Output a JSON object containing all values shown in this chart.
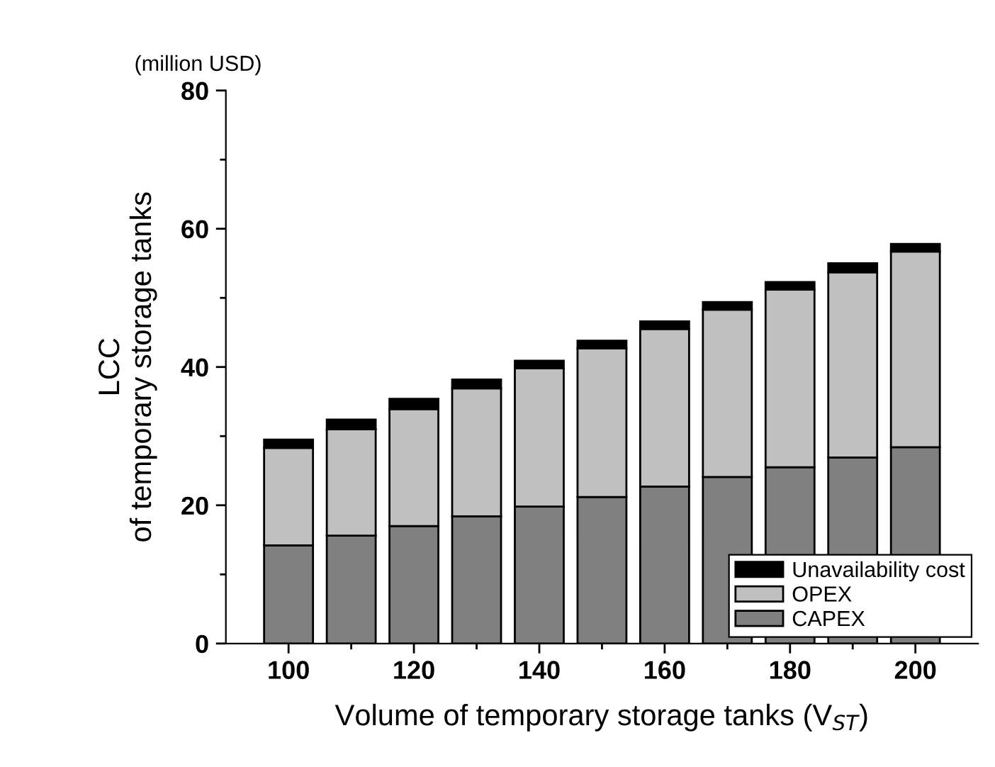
{
  "chart_data": {
    "type": "bar",
    "stacked": true,
    "xlabel": "Volume of temporary storage tanks (V$_{ST}$)",
    "ylabel": "LCC\nof temporary storage tanks",
    "annotations": [
      "(million USD)"
    ],
    "x": [
      100,
      110,
      120,
      130,
      140,
      150,
      160,
      170,
      180,
      190,
      200
    ],
    "series": [
      {
        "name": "CAPEX",
        "color": "#808080",
        "values": [
          14.2,
          15.6,
          17.0,
          18.4,
          19.8,
          21.2,
          22.7,
          24.1,
          25.5,
          26.9,
          28.4
        ]
      },
      {
        "name": "OPEX",
        "color": "#c0c0c0",
        "values": [
          14.1,
          15.4,
          16.9,
          18.5,
          20.0,
          21.5,
          22.8,
          24.2,
          25.7,
          26.8,
          28.3
        ]
      },
      {
        "name": "Unavailability cost",
        "color": "#000000",
        "values": [
          1.2,
          1.4,
          1.5,
          1.3,
          1.1,
          1.1,
          1.1,
          1.1,
          1.1,
          1.3,
          1.1
        ]
      }
    ],
    "xlim": [
      90,
      210
    ],
    "xticks": [
      100,
      120,
      140,
      160,
      180,
      200
    ],
    "ylim": [
      0,
      80
    ],
    "yticks": [
      0,
      20,
      40,
      60,
      80
    ],
    "grid": false,
    "legend": "bottom right"
  }
}
